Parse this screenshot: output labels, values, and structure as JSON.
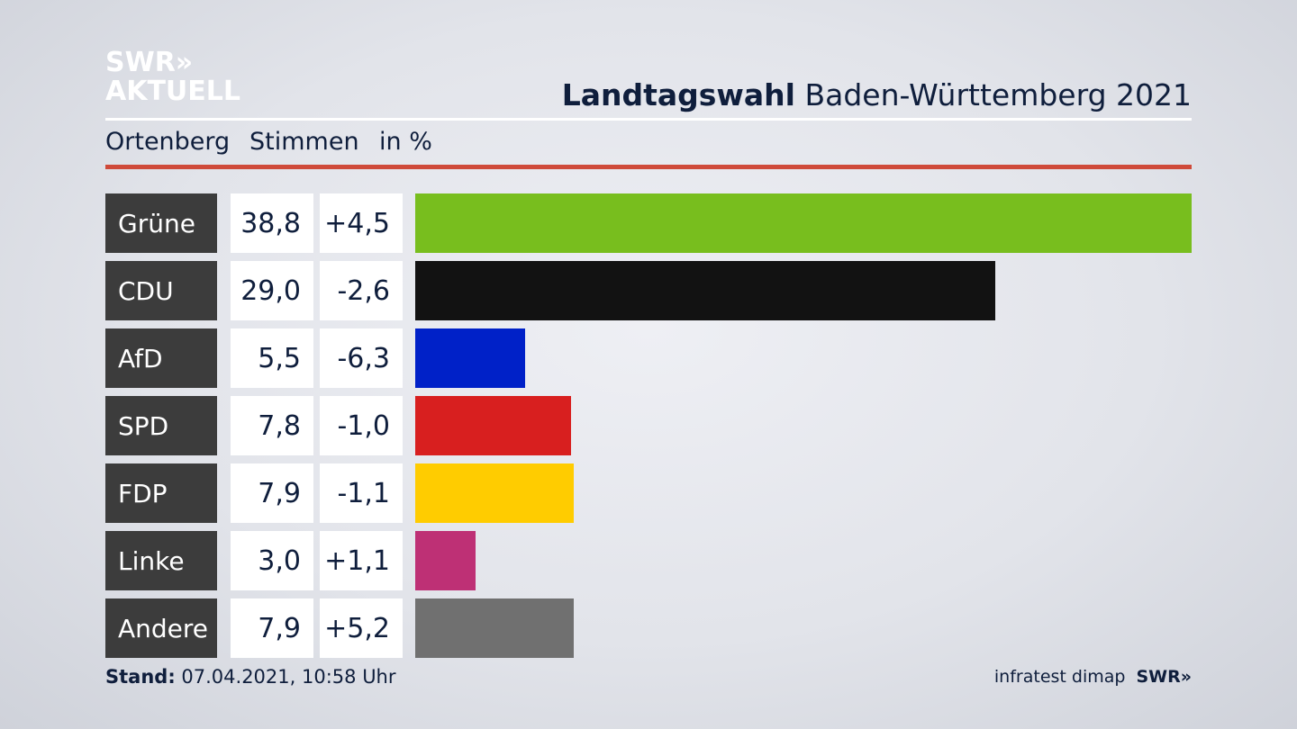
{
  "brand": {
    "line1": "SWR»",
    "line2": "AKTUELL"
  },
  "title": {
    "bold": "Landtagswahl",
    "rest": "Baden-Württemberg 2021"
  },
  "subheader": {
    "location": "Ortenberg",
    "measure": "Stimmen",
    "unit": "in %"
  },
  "chart_data": {
    "type": "bar",
    "orientation": "horizontal",
    "title": "Landtagswahl Baden-Württemberg 2021",
    "categories": [
      "Grüne",
      "CDU",
      "AfD",
      "SPD",
      "FDP",
      "Linke",
      "Andere"
    ],
    "values": [
      38.8,
      29.0,
      5.5,
      7.8,
      7.9,
      3.0,
      7.9
    ],
    "value_labels": [
      "38,8",
      "29,0",
      "5,5",
      "7,8",
      "7,9",
      "3,0",
      "7,9"
    ],
    "changes": [
      4.5,
      -2.6,
      -6.3,
      -1.0,
      -1.1,
      1.1,
      5.2
    ],
    "change_labels": [
      "+4,5",
      "-2,6",
      "-6,3",
      "-1,0",
      "-1,1",
      "+1,1",
      "+5,2"
    ],
    "colors": [
      "#78be1e",
      "#121212",
      "#0021c8",
      "#d81f1f",
      "#ffcc00",
      "#be3075",
      "#707070"
    ],
    "xlim": [
      0,
      38.8
    ]
  },
  "footer": {
    "stand_label": "Stand:",
    "stand_value": "07.04.2021, 10:58 Uhr",
    "source": "infratest dimap",
    "brand": "SWR»"
  }
}
